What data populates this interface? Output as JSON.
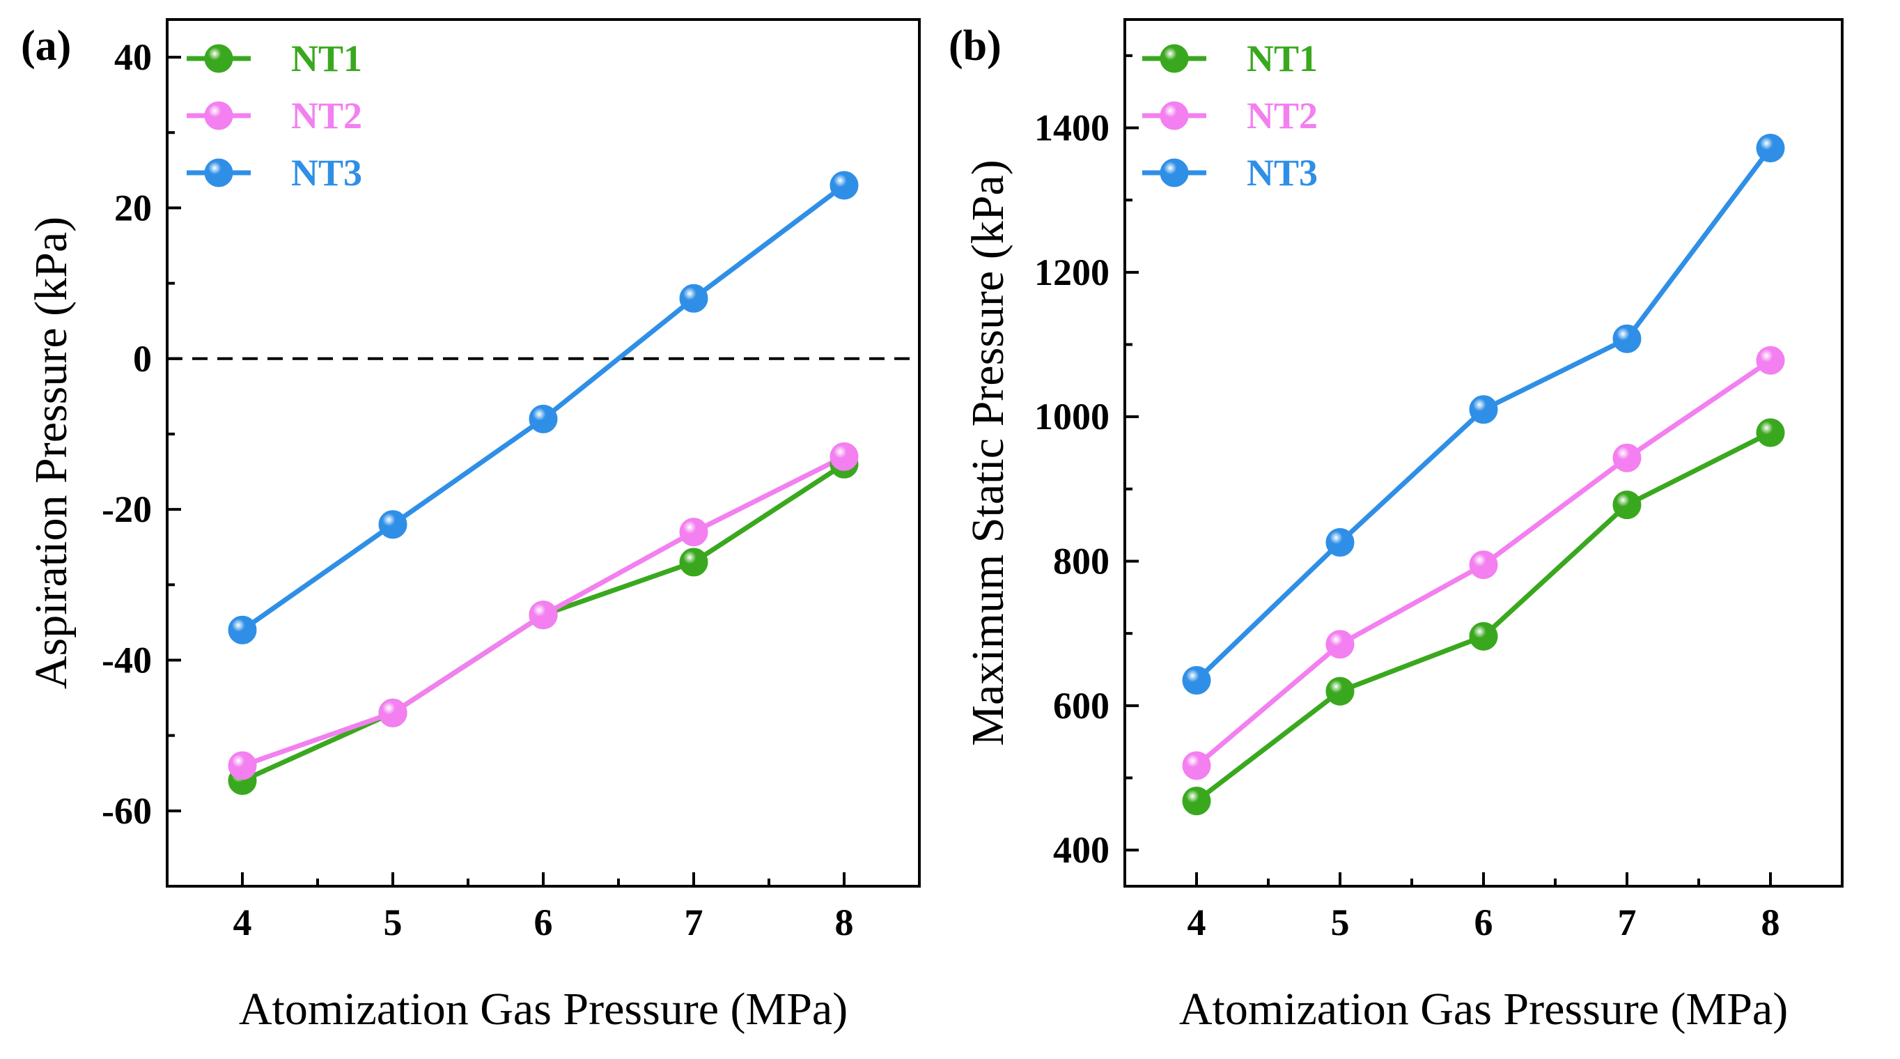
{
  "colors": {
    "NT1": "#3aa81e",
    "NT2": "#f37ff0",
    "NT3": "#2f8fe6"
  },
  "chart_data": [
    {
      "panel": "(a)",
      "type": "line",
      "xlabel": "Atomization Gas Pressure (MPa)",
      "ylabel": "Aspiration Pressure (kPa)",
      "x": [
        4,
        5,
        6,
        7,
        8
      ],
      "x_ticks": [
        "4",
        "5",
        "6",
        "7",
        "8"
      ],
      "xlim": [
        3.5,
        8.5
      ],
      "ylim": [
        -70,
        45
      ],
      "y_ticks": [
        "40",
        "20",
        "0",
        "-20",
        "-40",
        "-60"
      ],
      "reference_line": {
        "y": 0,
        "style": "dashed"
      },
      "legend_position": "top-left",
      "series": [
        {
          "name": "NT1",
          "values": [
            -56,
            -47,
            -34,
            -27,
            -14
          ]
        },
        {
          "name": "NT2",
          "values": [
            -54,
            -47,
            -34,
            -23,
            -13
          ]
        },
        {
          "name": "NT3",
          "values": [
            -36,
            -22,
            -8,
            8,
            23
          ]
        }
      ]
    },
    {
      "panel": "(b)",
      "type": "line",
      "xlabel": "Atomization Gas Pressure (MPa)",
      "ylabel": "Maximum Static Pressure (kPa)",
      "x": [
        4,
        5,
        6,
        7,
        8
      ],
      "x_ticks": [
        "4",
        "5",
        "6",
        "7",
        "8"
      ],
      "xlim": [
        3.5,
        8.5
      ],
      "ylim": [
        350,
        1550
      ],
      "y_ticks": [
        "1400",
        "1200",
        "1000",
        "800",
        "600",
        "400"
      ],
      "legend_position": "top-left",
      "series": [
        {
          "name": "NT1",
          "values": [
            468,
            620,
            696,
            878,
            978
          ]
        },
        {
          "name": "NT2",
          "values": [
            517,
            685,
            795,
            943,
            1078
          ]
        },
        {
          "name": "NT3",
          "values": [
            635,
            826,
            1010,
            1108,
            1372
          ]
        }
      ]
    }
  ]
}
